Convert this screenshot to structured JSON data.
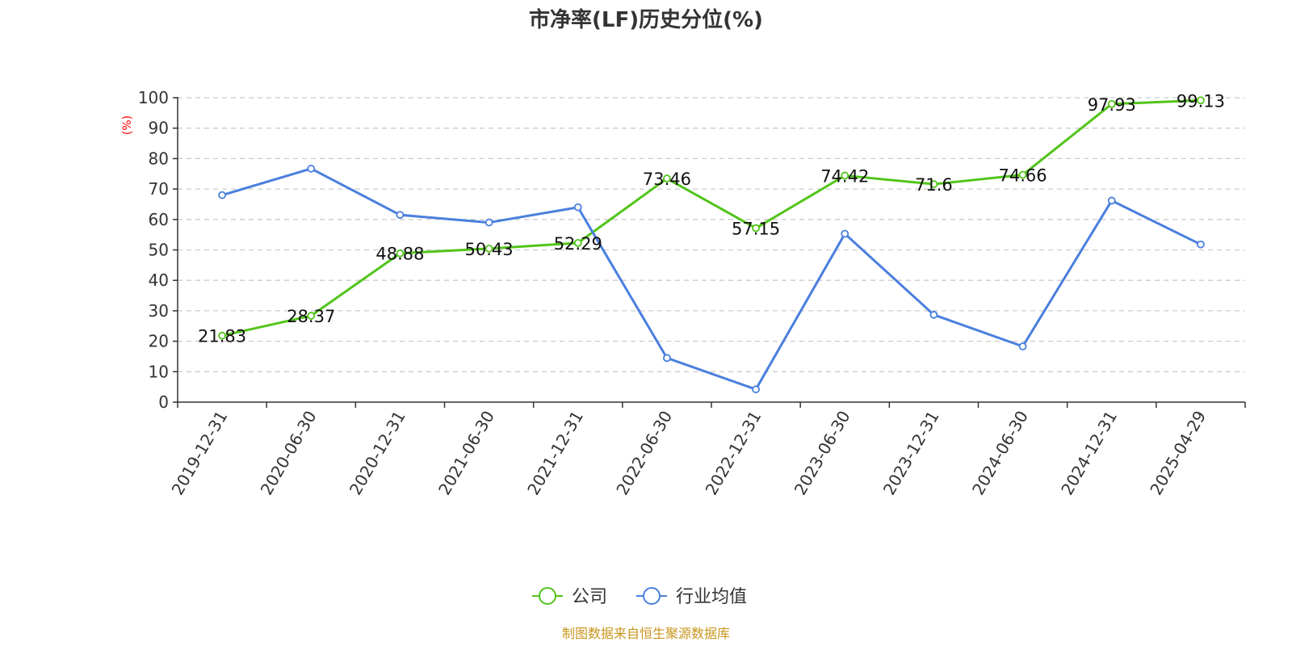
{
  "chart_data": {
    "type": "line",
    "title": "市净率(LF)历史分位(%)",
    "ylabel": "(%)",
    "xlabel": "",
    "ylim": [
      0,
      100
    ],
    "yticks": [
      0,
      10,
      20,
      30,
      40,
      50,
      60,
      70,
      80,
      90,
      100
    ],
    "grid": true,
    "legend_position": "bottom",
    "categories": [
      "2019-12-31",
      "2020-06-30",
      "2020-12-31",
      "2021-06-30",
      "2021-12-31",
      "2022-06-30",
      "2022-12-31",
      "2023-06-30",
      "2023-12-31",
      "2024-06-30",
      "2024-12-31",
      "2025-04-29"
    ],
    "series": [
      {
        "name": "公司",
        "color": "#52c41a",
        "values": [
          21.83,
          28.37,
          48.88,
          50.43,
          52.29,
          73.46,
          57.15,
          74.42,
          71.6,
          74.66,
          97.93,
          99.13
        ],
        "data_labels": [
          "21.83",
          "28.37",
          "48.88",
          "50.43",
          "52.29",
          "73.46",
          "57.15",
          "74.42",
          "71.6",
          "74.66",
          "97.93",
          "99.13"
        ]
      },
      {
        "name": "行业均值",
        "color": "#4a7fde",
        "values": [
          68,
          76.7,
          61.5,
          59,
          64,
          14.5,
          4.2,
          55.3,
          28.7,
          18.3,
          66.2,
          51.8
        ]
      }
    ],
    "source": "制图数据来自恒生聚源数据库"
  }
}
